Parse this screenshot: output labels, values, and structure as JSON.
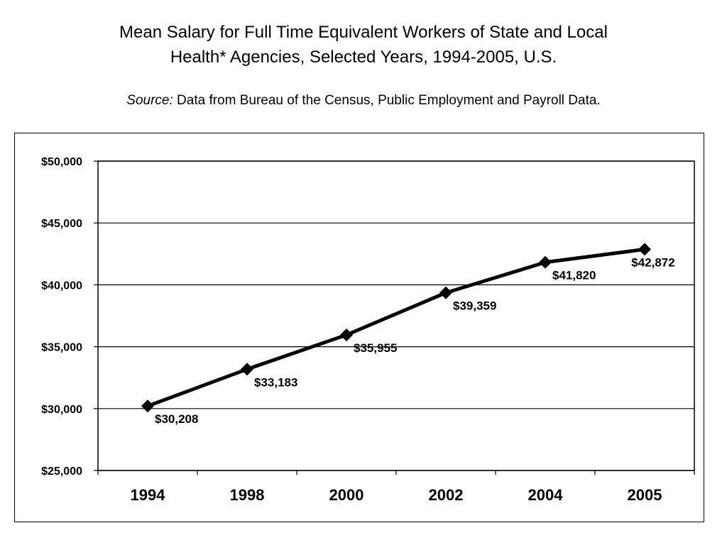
{
  "title_line1": "Mean Salary for Full Time Equivalent Workers of State and Local",
  "title_line2": "Health* Agencies, Selected Years, 1994-2005, U.S.",
  "source_label": "Source:",
  "source_text": "Data from Bureau of the Census, Public Employment and Payroll Data.",
  "chart_data": {
    "type": "line",
    "title": "Mean Salary for Full Time Equivalent Workers of State and Local Health* Agencies, Selected Years, 1994-2005, U.S.",
    "xlabel": "",
    "ylabel": "",
    "categories": [
      "1994",
      "1998",
      "2000",
      "2002",
      "2004",
      "2005"
    ],
    "series": [
      {
        "values": [
          30208,
          33183,
          35955,
          39359,
          41820,
          42872
        ],
        "labels": [
          "$30,208",
          "$33,183",
          "$35,955",
          "$39,359",
          "$41,820",
          "$42,872"
        ]
      }
    ],
    "ylim": [
      25000,
      50000
    ],
    "yticks": [
      25000,
      30000,
      35000,
      40000,
      45000,
      50000
    ],
    "ytick_labels": [
      "$25,000",
      "$30,000",
      "$35,000",
      "$40,000",
      "$45,000",
      "$50,000"
    ],
    "grid": true,
    "marker": "diamond",
    "line_color": "#000000",
    "legend": "none"
  }
}
